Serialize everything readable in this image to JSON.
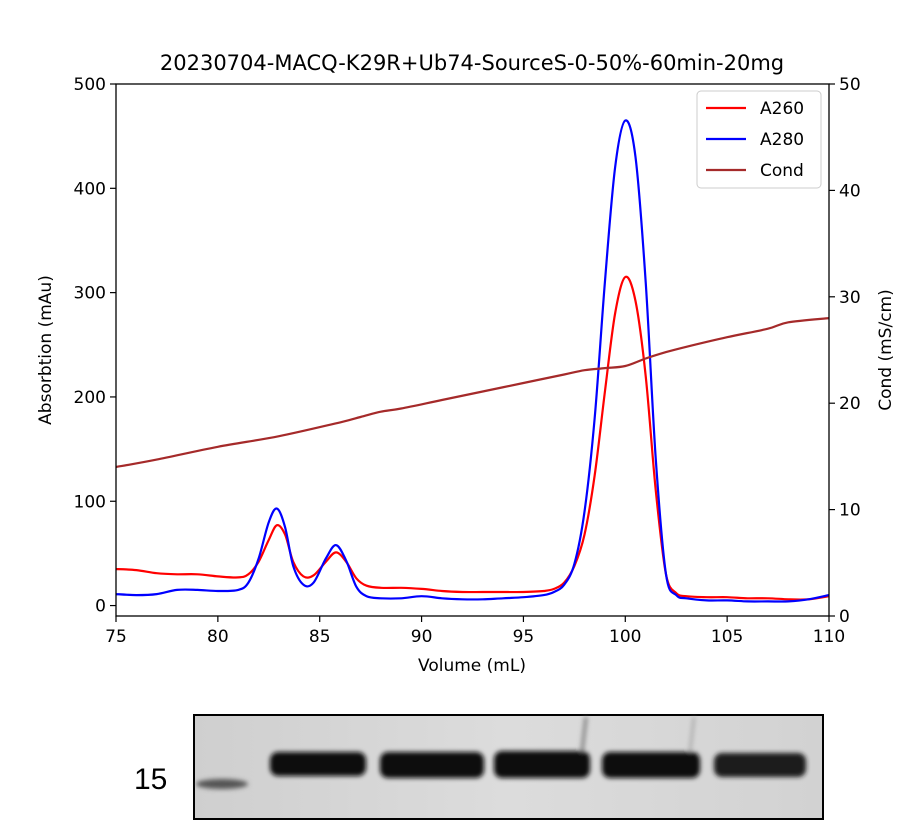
{
  "chart_data": {
    "type": "line",
    "title": "20230704-MACQ-K29R+Ub74-SourceS-0-50%-60min-20mg",
    "xlabel": "Volume (mL)",
    "ylabel": "Absorbtion (mAu)",
    "y2label": "Cond (mS/cm)",
    "xlim": [
      75,
      110
    ],
    "ylim": [
      -10,
      500
    ],
    "y2lim": [
      0,
      50
    ],
    "xticks": [
      "75",
      "80",
      "85",
      "90",
      "95",
      "100",
      "105",
      "110"
    ],
    "yticks": [
      "0",
      "100",
      "200",
      "300",
      "400",
      "500"
    ],
    "y2ticks": [
      "0",
      "10",
      "20",
      "30",
      "40",
      "50"
    ],
    "grid": false,
    "legend_position": "top-right",
    "series": [
      {
        "name": "A260",
        "axis": "left",
        "color": "#ff0000",
        "x": [
          75,
          76,
          77,
          78,
          79,
          80,
          81,
          81.5,
          82,
          82.5,
          82.9,
          83.3,
          83.7,
          84.2,
          84.7,
          85.3,
          85.8,
          86.3,
          86.8,
          87.3,
          88,
          89,
          90,
          91,
          92,
          93,
          94,
          95,
          96,
          96.5,
          97,
          97.5,
          98,
          98.5,
          99,
          99.5,
          100,
          100.5,
          101,
          101.5,
          102,
          102.5,
          103,
          104,
          105,
          106,
          107,
          108,
          109,
          110
        ],
        "y": [
          35,
          34,
          31,
          30,
          30,
          28,
          27,
          30,
          42,
          63,
          77,
          68,
          42,
          28,
          29,
          42,
          51,
          42,
          26,
          19,
          17,
          17,
          16,
          14,
          13,
          13,
          13,
          13,
          14,
          16,
          22,
          38,
          68,
          125,
          205,
          280,
          315,
          292,
          220,
          110,
          30,
          12,
          9,
          8,
          8,
          7,
          7,
          6,
          6,
          9
        ]
      },
      {
        "name": "A280",
        "axis": "left",
        "color": "#0000ff",
        "x": [
          75,
          76,
          77,
          78,
          79,
          80,
          81,
          81.5,
          82,
          82.5,
          82.9,
          83.3,
          83.7,
          84.2,
          84.7,
          85.3,
          85.8,
          86.3,
          86.8,
          87.3,
          88,
          89,
          90,
          91,
          92,
          93,
          94,
          95,
          96,
          96.5,
          97,
          97.5,
          98,
          98.5,
          99,
          99.5,
          100,
          100.5,
          101,
          101.5,
          102,
          102.5,
          103,
          104,
          105,
          106,
          107,
          108,
          109,
          110
        ],
        "y": [
          11,
          10,
          11,
          15,
          15,
          14,
          15,
          22,
          45,
          80,
          93,
          75,
          38,
          20,
          22,
          45,
          58,
          43,
          18,
          9,
          7,
          7,
          9,
          7,
          6,
          6,
          7,
          8,
          10,
          13,
          20,
          40,
          90,
          180,
          310,
          420,
          465,
          430,
          310,
          140,
          30,
          10,
          7,
          5,
          5,
          4,
          4,
          4,
          6,
          10
        ]
      },
      {
        "name": "Cond",
        "axis": "right",
        "color": "#a52a2a",
        "x": [
          75,
          77,
          80,
          83,
          86,
          87,
          88,
          89,
          91,
          93,
          95,
          97,
          98,
          99,
          100,
          101,
          102,
          103,
          105,
          107,
          108,
          110
        ],
        "y": [
          14.0,
          14.7,
          15.9,
          16.9,
          18.2,
          18.7,
          19.2,
          19.5,
          20.3,
          21.1,
          21.9,
          22.7,
          23.1,
          23.3,
          23.5,
          24.2,
          24.8,
          25.3,
          26.2,
          27.0,
          27.6,
          28.0
        ]
      }
    ]
  },
  "gel": {
    "marker_label": "15",
    "lane_count": 6
  }
}
